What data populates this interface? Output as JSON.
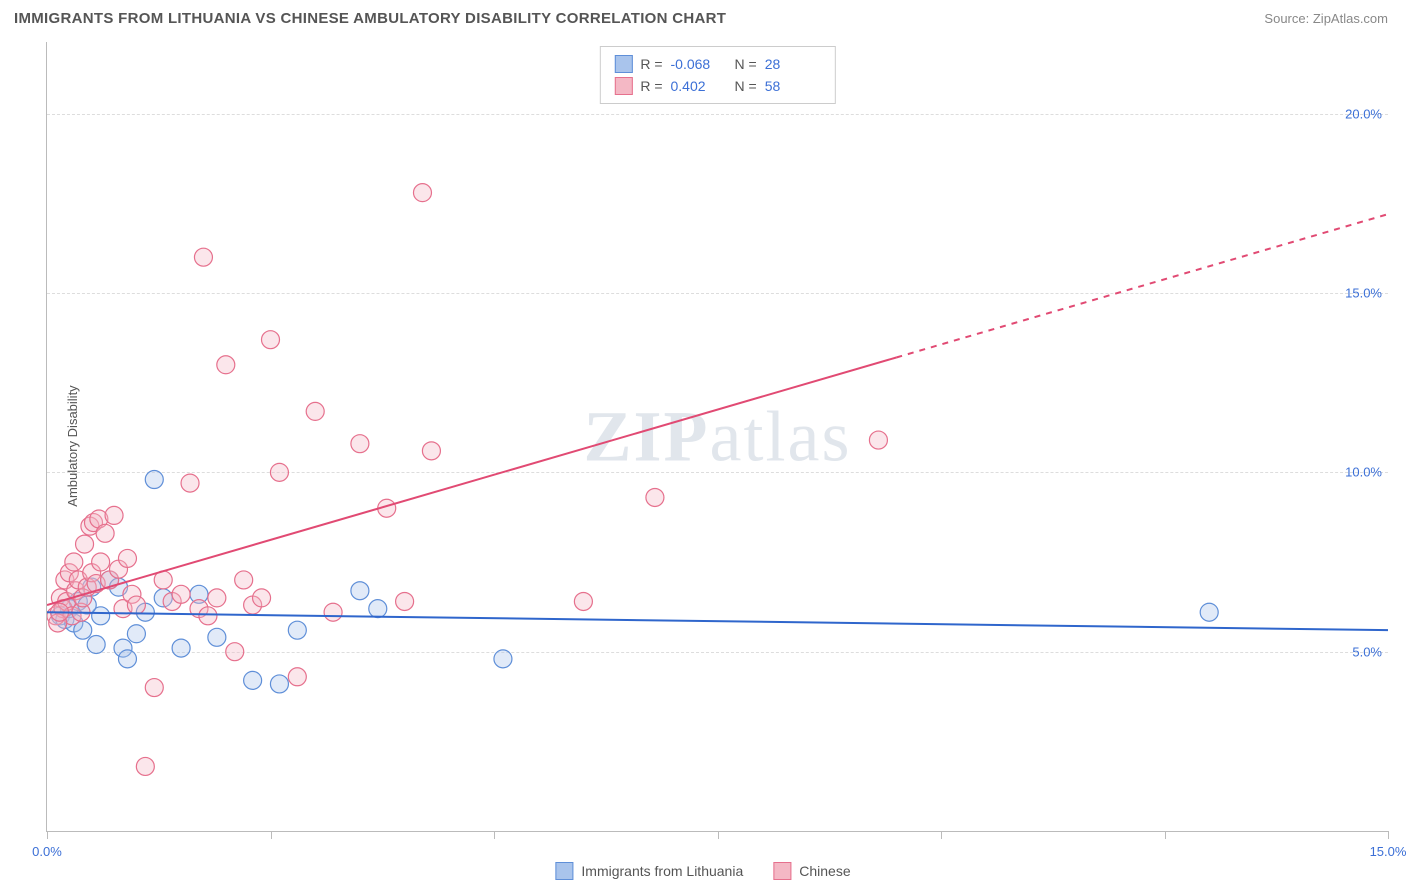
{
  "header": {
    "title": "IMMIGRANTS FROM LITHUANIA VS CHINESE AMBULATORY DISABILITY CORRELATION CHART",
    "source_label": "Source:",
    "source_name": "ZipAtlas.com"
  },
  "y_axis": {
    "label": "Ambulatory Disability"
  },
  "watermark": {
    "text_prefix": "ZIP",
    "text_suffix": "atlas"
  },
  "chart": {
    "type": "scatter",
    "background_color": "#ffffff",
    "grid_color": "#dddddd",
    "axis_color": "#bbbbbb",
    "text_color": "#555555",
    "value_color": "#3b6fd6",
    "xlim": [
      0,
      15
    ],
    "ylim": [
      0,
      22
    ],
    "y_ticks": [
      5,
      10,
      15,
      20
    ],
    "y_tick_labels": [
      "5.0%",
      "10.0%",
      "15.0%",
      "20.0%"
    ],
    "x_ticks": [
      0,
      2.5,
      5,
      7.5,
      10,
      12.5,
      15
    ],
    "x_tick_labels": [
      "0.0%",
      "",
      "",
      "",
      "",
      "",
      "15.0%"
    ],
    "marker_radius": 9,
    "marker_fill_opacity": 0.35,
    "marker_stroke_width": 1.2,
    "line_width": 2,
    "series": [
      {
        "id": "lithuania",
        "label": "Immigrants from Lithuania",
        "color_fill": "#a9c4ec",
        "color_stroke": "#5f8fd8",
        "line_color": "#2f66cc",
        "R": "-0.068",
        "N": "28",
        "trend": {
          "x1": 0,
          "y1": 6.1,
          "x2": 15,
          "y2": 5.6,
          "dash_from_x": null
        },
        "points": [
          [
            0.15,
            6.0
          ],
          [
            0.2,
            5.9
          ],
          [
            0.25,
            6.2
          ],
          [
            0.3,
            5.8
          ],
          [
            0.35,
            6.4
          ],
          [
            0.4,
            5.6
          ],
          [
            0.5,
            6.8
          ],
          [
            0.55,
            5.2
          ],
          [
            0.6,
            6.0
          ],
          [
            0.7,
            7.0
          ],
          [
            0.8,
            6.8
          ],
          [
            0.85,
            5.1
          ],
          [
            0.9,
            4.8
          ],
          [
            1.0,
            5.5
          ],
          [
            1.1,
            6.1
          ],
          [
            1.2,
            9.8
          ],
          [
            1.3,
            6.5
          ],
          [
            1.5,
            5.1
          ],
          [
            1.7,
            6.6
          ],
          [
            1.9,
            5.4
          ],
          [
            2.3,
            4.2
          ],
          [
            2.6,
            4.1
          ],
          [
            2.8,
            5.6
          ],
          [
            3.5,
            6.7
          ],
          [
            3.7,
            6.2
          ],
          [
            5.1,
            4.8
          ],
          [
            13.0,
            6.1
          ],
          [
            0.45,
            6.3
          ]
        ]
      },
      {
        "id": "chinese",
        "label": "Chinese",
        "color_fill": "#f4b8c5",
        "color_stroke": "#e6708d",
        "line_color": "#e14a73",
        "R": "0.402",
        "N": "58",
        "trend": {
          "x1": 0,
          "y1": 6.3,
          "x2": 15,
          "y2": 17.2,
          "dash_from_x": 9.5
        },
        "points": [
          [
            0.1,
            6.0
          ],
          [
            0.15,
            6.5
          ],
          [
            0.18,
            6.2
          ],
          [
            0.2,
            7.0
          ],
          [
            0.22,
            6.4
          ],
          [
            0.25,
            7.2
          ],
          [
            0.28,
            6.0
          ],
          [
            0.3,
            7.5
          ],
          [
            0.32,
            6.7
          ],
          [
            0.35,
            7.0
          ],
          [
            0.38,
            6.1
          ],
          [
            0.4,
            6.5
          ],
          [
            0.42,
            8.0
          ],
          [
            0.45,
            6.8
          ],
          [
            0.48,
            8.5
          ],
          [
            0.5,
            7.2
          ],
          [
            0.52,
            8.6
          ],
          [
            0.55,
            6.9
          ],
          [
            0.58,
            8.7
          ],
          [
            0.6,
            7.5
          ],
          [
            0.65,
            8.3
          ],
          [
            0.7,
            7.0
          ],
          [
            0.75,
            8.8
          ],
          [
            0.8,
            7.3
          ],
          [
            0.85,
            6.2
          ],
          [
            0.9,
            7.6
          ],
          [
            0.95,
            6.6
          ],
          [
            1.0,
            6.3
          ],
          [
            1.1,
            1.8
          ],
          [
            1.2,
            4.0
          ],
          [
            1.3,
            7.0
          ],
          [
            1.4,
            6.4
          ],
          [
            1.5,
            6.6
          ],
          [
            1.6,
            9.7
          ],
          [
            1.7,
            6.2
          ],
          [
            1.75,
            16.0
          ],
          [
            1.8,
            6.0
          ],
          [
            1.9,
            6.5
          ],
          [
            2.0,
            13.0
          ],
          [
            2.1,
            5.0
          ],
          [
            2.2,
            7.0
          ],
          [
            2.3,
            6.3
          ],
          [
            2.4,
            6.5
          ],
          [
            2.5,
            13.7
          ],
          [
            2.6,
            10.0
          ],
          [
            2.8,
            4.3
          ],
          [
            3.0,
            11.7
          ],
          [
            3.2,
            6.1
          ],
          [
            3.5,
            10.8
          ],
          [
            3.8,
            9.0
          ],
          [
            4.0,
            6.4
          ],
          [
            4.2,
            17.8
          ],
          [
            4.3,
            10.6
          ],
          [
            6.0,
            6.4
          ],
          [
            6.8,
            9.3
          ],
          [
            9.3,
            10.9
          ],
          [
            0.12,
            5.8
          ],
          [
            0.14,
            6.1
          ]
        ]
      }
    ]
  },
  "legend_bottom": {
    "items": [
      {
        "series_id": "lithuania"
      },
      {
        "series_id": "chinese"
      }
    ]
  }
}
